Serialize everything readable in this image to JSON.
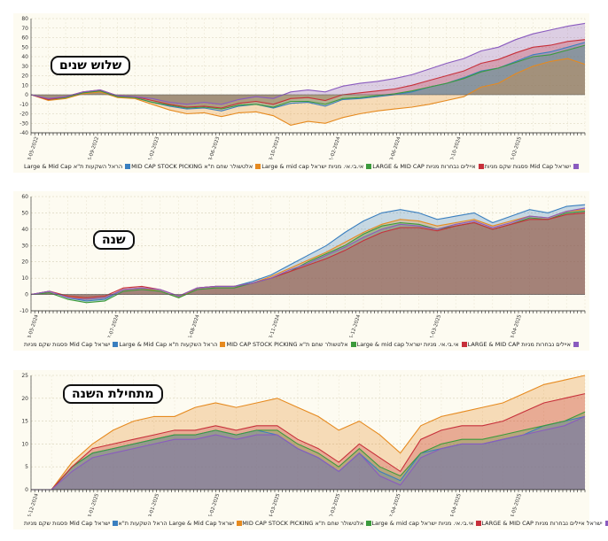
{
  "chart_data": [
    {
      "type": "area",
      "title": "שלוש שנים",
      "ylim": [
        -40,
        80
      ],
      "yticks": [
        -40,
        -30,
        -20,
        -10,
        0,
        10,
        20,
        30,
        40,
        50,
        60,
        70,
        80
      ],
      "xticks": [
        "28-05-2022",
        "26-09-2022",
        "01-02-2023",
        "08-06-2023",
        "08-10-2023",
        "11-02-2024",
        "09-06-2024",
        "10-10-2024",
        "06-02-2025"
      ],
      "grid": true,
      "legend_position": "bottom",
      "legend": [
        "הראל השקעות ת\"א Large & Mid Cap",
        "אלטשולר שחם ת\"א MID CAP STOCK PICKING",
        "אי.בי.אי. מניות ישראל Large & mid cap",
        "איילים נבחרות מניות LARGE & MID CAP",
        "ישראל Mid Cap פסגות שקם מניות"
      ],
      "colors": [
        "#3a7fbf",
        "#e68a1f",
        "#3c9a3c",
        "#c7303a",
        "#8a5bbf"
      ],
      "series": [
        {
          "name": "הראל השקעות ת\"א Large & Mid Cap",
          "color": "#3a7fbf",
          "values": [
            0,
            -5,
            -3,
            2,
            4,
            -2,
            -3,
            -8,
            -12,
            -15,
            -14,
            -17,
            -12,
            -10,
            -14,
            -9,
            -8,
            -12,
            -5,
            -4,
            -2,
            0,
            3,
            8,
            12,
            18,
            25,
            28,
            35,
            42,
            45,
            50,
            55
          ]
        },
        {
          "name": "אלטשולר שחם ת\"א MID CAP STOCK PICKING",
          "color": "#e68a1f",
          "values": [
            0,
            -6,
            -4,
            1,
            3,
            -3,
            -4,
            -10,
            -16,
            -20,
            -19,
            -23,
            -19,
            -18,
            -22,
            -32,
            -28,
            -30,
            -24,
            -20,
            -17,
            -15,
            -13,
            -10,
            -6,
            -2,
            8,
            12,
            22,
            30,
            35,
            38,
            32
          ]
        },
        {
          "name": "אי.בי.אי. מניות ישראל Large & mid cap",
          "color": "#3c9a3c",
          "values": [
            0,
            -5,
            -3,
            2,
            4,
            -2,
            -3,
            -8,
            -11,
            -14,
            -13,
            -15,
            -11,
            -10,
            -13,
            -7,
            -7,
            -10,
            -4,
            -3,
            -1,
            1,
            4,
            8,
            12,
            17,
            24,
            28,
            34,
            40,
            42,
            47,
            52
          ]
        },
        {
          "name": "איילים נבחרות מניות LARGE & MID CAP",
          "color": "#c7303a",
          "values": [
            0,
            -5,
            -2,
            3,
            5,
            -1,
            -2,
            -6,
            -10,
            -13,
            -12,
            -14,
            -9,
            -7,
            -10,
            -4,
            -3,
            -6,
            0,
            2,
            4,
            6,
            10,
            15,
            20,
            25,
            33,
            37,
            44,
            50,
            52,
            56,
            58
          ]
        },
        {
          "name": "ישראל Mid Cap פסגות שקם מניות",
          "color": "#8a5bbf",
          "values": [
            0,
            -4,
            -2,
            3,
            5,
            -1,
            -2,
            -4,
            -8,
            -10,
            -8,
            -10,
            -5,
            -2,
            -4,
            3,
            5,
            3,
            9,
            12,
            14,
            17,
            21,
            27,
            33,
            38,
            46,
            50,
            58,
            64,
            68,
            72,
            75
          ]
        }
      ]
    },
    {
      "type": "area",
      "title": "שנה",
      "ylim": [
        -10,
        60
      ],
      "yticks": [
        -10,
        0,
        10,
        20,
        30,
        40,
        50,
        60
      ],
      "xticks": [
        "28-05-2024",
        "17-07-2024",
        "25-08-2024",
        "13-11-2024",
        "25-12-2024",
        "11-03-2025",
        "23-04-2025"
      ],
      "grid": true,
      "legend_position": "bottom",
      "legend": [
        "ישראל Mid Cap פסגות שקם מניות",
        "הראל השקעות ת\"א Large & Mid Cap",
        "אלטשולר שחם ת\"א MID CAP STOCK PICKING",
        "אי.בי.אי. מניות ישראל Large & mid cap",
        "איילים נבחרות מניות LARGE & MID CAP"
      ],
      "colors": [
        "#3a7fbf",
        "#e68a1f",
        "#3c9a3c",
        "#c7303a",
        "#8a5bbf"
      ],
      "series": [
        {
          "name": "ישראל Mid Cap פסגות שקם מניות",
          "color": "#3a7fbf",
          "values": [
            0,
            2,
            -2,
            -4,
            -3,
            3,
            4,
            2,
            -2,
            4,
            5,
            5,
            8,
            12,
            18,
            24,
            30,
            38,
            45,
            50,
            52,
            50,
            46,
            48,
            50,
            44,
            48,
            52,
            50,
            54,
            55
          ]
        },
        {
          "name": "הראל השקעות ת\"א Large & Mid Cap",
          "color": "#e68a1f",
          "values": [
            0,
            2,
            -1,
            -3,
            -2,
            3,
            4,
            2,
            -2,
            4,
            5,
            5,
            7,
            11,
            16,
            21,
            26,
            32,
            38,
            43,
            46,
            45,
            42,
            44,
            46,
            42,
            45,
            48,
            47,
            51,
            52
          ]
        },
        {
          "name": "אלטשולר שחם ת\"א MID CAP STOCK PICKING",
          "color": "#3c9a3c",
          "values": [
            0,
            1,
            -3,
            -5,
            -4,
            2,
            3,
            2,
            -2,
            3,
            4,
            4,
            7,
            10,
            14,
            20,
            25,
            30,
            37,
            42,
            44,
            43,
            40,
            42,
            44,
            40,
            43,
            47,
            46,
            50,
            51
          ]
        },
        {
          "name": "אי.בי.אי. מניות ישראל Large & mid cap",
          "color": "#c7303a",
          "values": [
            0,
            2,
            -1,
            -2,
            -1,
            4,
            5,
            3,
            -1,
            4,
            5,
            5,
            7,
            10,
            14,
            18,
            22,
            27,
            33,
            38,
            41,
            41,
            39,
            42,
            44,
            40,
            43,
            46,
            46,
            49,
            50
          ]
        },
        {
          "name": "איילים נבחרות מניות LARGE & MID CAP",
          "color": "#8a5bbf",
          "values": [
            0,
            2,
            -2,
            -3,
            -2,
            3,
            4,
            3,
            -1,
            4,
            5,
            5,
            7,
            10,
            15,
            19,
            24,
            29,
            35,
            40,
            43,
            42,
            40,
            43,
            45,
            41,
            44,
            48,
            47,
            51,
            53
          ]
        }
      ]
    },
    {
      "type": "area",
      "title": "מתחילת השנה",
      "ylim": [
        0,
        25
      ],
      "yticks": [
        0,
        5,
        10,
        15,
        20,
        25
      ],
      "xticks": [
        "26-12-2024",
        "13-01-2025",
        "29-01-2025",
        "16-02-2025",
        "04-03-2025",
        "20-03-2025",
        "07-04-2025",
        "24-04-2025",
        "14-05-2025"
      ],
      "grid": true,
      "legend_position": "bottom",
      "legend": [
        "ישראל Mid Cap פסגות שקם מניות",
        "ישראל Large & Mid Cap הראל השקעות ת\"א",
        "אלטשולר שחם ת\"א MID CAP STOCK PICKING",
        "אי.בי.אי. מניות ישראל Large & mid cap",
        "ישראל איילים נבחרות מניות LARGE & MID CAP"
      ],
      "colors": [
        "#3a7fbf",
        "#e68a1f",
        "#3c9a3c",
        "#c7303a",
        "#8a5bbf"
      ],
      "series": [
        {
          "name": "ישראל Mid Cap פסגות שקם מניות",
          "color": "#3a7fbf",
          "values": [
            0,
            0,
            5,
            8,
            9,
            10,
            11,
            12,
            12,
            13,
            12,
            13,
            12,
            9,
            7,
            4,
            8,
            4,
            2,
            8,
            9,
            10,
            10,
            11,
            12,
            14,
            15,
            16
          ]
        },
        {
          "name": "ישראל Large & Mid Cap הראל השקעות ת\"א",
          "color": "#e68a1f",
          "values": [
            0,
            0,
            6,
            10,
            13,
            15,
            16,
            16,
            18,
            19,
            18,
            19,
            20,
            18,
            16,
            13,
            15,
            12,
            8,
            14,
            16,
            17,
            18,
            19,
            21,
            23,
            24,
            25
          ]
        },
        {
          "name": "אלטשולר שחם ת\"א MID CAP STOCK PICKING",
          "color": "#3c9a3c",
          "values": [
            0,
            0,
            5,
            8,
            9,
            10,
            11,
            12,
            12,
            13,
            12,
            13,
            13,
            10,
            8,
            5,
            9,
            5,
            3,
            8,
            10,
            11,
            11,
            12,
            13,
            14,
            15,
            17
          ]
        },
        {
          "name": "אי.בי.אי. מניות ישראל Large & mid cap",
          "color": "#c7303a",
          "values": [
            0,
            0,
            5,
            9,
            10,
            11,
            12,
            13,
            13,
            14,
            13,
            14,
            14,
            11,
            9,
            6,
            10,
            7,
            4,
            11,
            13,
            14,
            14,
            15,
            17,
            19,
            20,
            21
          ]
        },
        {
          "name": "ישראל איילים נבחרות מניות LARGE & MID CAP",
          "color": "#8a5bbf",
          "values": [
            0,
            0,
            4,
            7,
            8,
            9,
            10,
            11,
            11,
            12,
            11,
            12,
            12,
            9,
            7,
            4,
            8,
            3,
            1,
            7,
            9,
            10,
            10,
            11,
            12,
            13,
            14,
            16
          ]
        }
      ]
    }
  ]
}
